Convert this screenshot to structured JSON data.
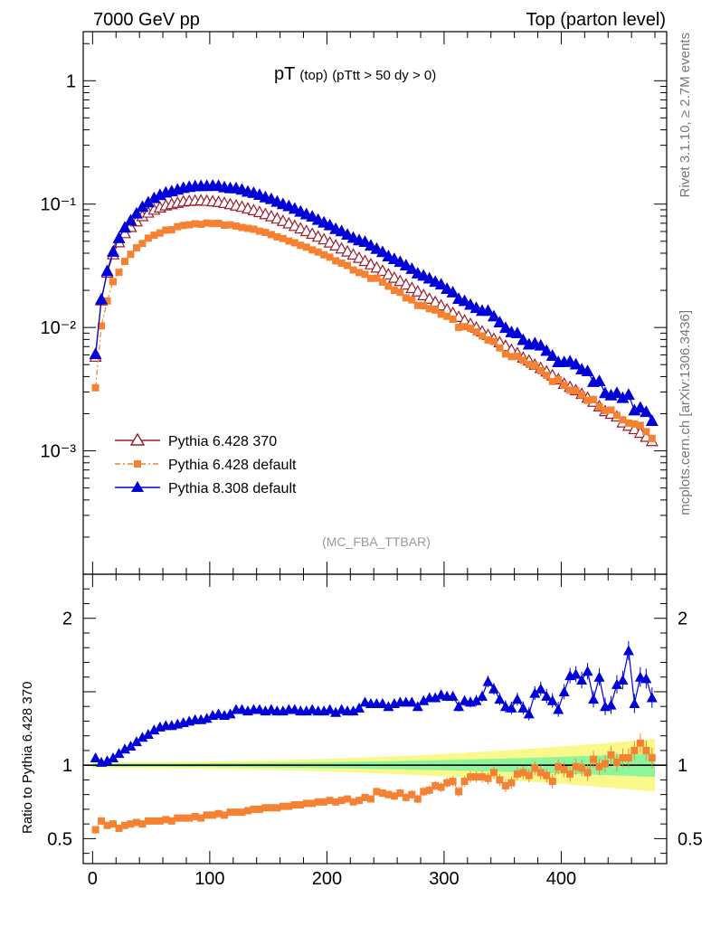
{
  "header": {
    "left": "7000 GeV pp",
    "right": "Top (parton level)"
  },
  "side": {
    "rivet": "Rivet 3.1.10, ≥ 2.7M events",
    "mcplots": "mcplots.cern.ch [arXiv:1306.3436]"
  },
  "chart_data": [
    {
      "type": "line",
      "title_main": "pT",
      "title_sub": "(top)",
      "title_cut": "(pTtt > 50 dy > 0)",
      "analysis": "(MC_FBA_TTBAR)",
      "yscale": "log",
      "xlim": [
        -8,
        490
      ],
      "ylim": [
        0.0001,
        2.5
      ],
      "ytick_labels": [
        "1",
        "10⁻¹",
        "10⁻²",
        "10⁻³"
      ],
      "ytick_values": [
        1,
        0.1,
        0.01,
        0.001
      ],
      "legend": [
        {
          "name": "Pythia 6.428 370",
          "color": "#9b1b2a",
          "marker": "open-triangle"
        },
        {
          "name": "Pythia 6.428 default",
          "color": "#f58232",
          "marker": "square"
        },
        {
          "name": "Pythia 8.308 default",
          "color": "#0000d8",
          "marker": "triangle"
        }
      ],
      "legend_position": "bottom-left",
      "x": [
        2.5,
        7.5,
        12.5,
        17.5,
        22.5,
        27.5,
        32.5,
        37.5,
        42.5,
        47.5,
        52.5,
        57.5,
        62.5,
        67.5,
        72.5,
        77.5,
        82.5,
        87.5,
        92.5,
        97.5,
        102.5,
        107.5,
        112.5,
        117.5,
        122.5,
        127.5,
        132.5,
        137.5,
        142.5,
        147.5,
        152.5,
        157.5,
        162.5,
        167.5,
        172.5,
        177.5,
        182.5,
        187.5,
        192.5,
        197.5,
        202.5,
        207.5,
        212.5,
        217.5,
        222.5,
        227.5,
        232.5,
        237.5,
        242.5,
        247.5,
        252.5,
        257.5,
        262.5,
        267.5,
        272.5,
        277.5,
        282.5,
        287.5,
        292.5,
        297.5,
        302.5,
        307.5,
        312.5,
        317.5,
        322.5,
        327.5,
        332.5,
        337.5,
        342.5,
        347.5,
        352.5,
        357.5,
        362.5,
        367.5,
        372.5,
        377.5,
        382.5,
        387.5,
        392.5,
        397.5,
        402.5,
        407.5,
        412.5,
        417.5,
        422.5,
        427.5,
        432.5,
        437.5,
        442.5,
        447.5,
        452.5,
        457.5,
        462.5,
        467.5,
        472.5,
        477.5
      ],
      "ref": [
        0.0058,
        0.0166,
        0.0278,
        0.0392,
        0.0491,
        0.0582,
        0.0653,
        0.0725,
        0.0799,
        0.0854,
        0.0902,
        0.094,
        0.0977,
        0.1,
        0.1025,
        0.105,
        0.1061,
        0.1067,
        0.1071,
        0.1064,
        0.1053,
        0.1042,
        0.1023,
        0.0999,
        0.0975,
        0.0951,
        0.0922,
        0.0894,
        0.0862,
        0.083,
        0.0797,
        0.0764,
        0.0731,
        0.0698,
        0.0666,
        0.0635,
        0.0605,
        0.0575,
        0.0545,
        0.0518,
        0.0489,
        0.0463,
        0.0437,
        0.0413,
        0.039,
        0.0367,
        0.0346,
        0.0325,
        0.0306,
        0.0288,
        0.027,
        0.0253,
        0.0238,
        0.0223,
        0.0209,
        0.0196,
        0.0183,
        0.0171,
        0.0161,
        0.0151,
        0.014,
        0.0131,
        0.0122,
        0.0114,
        0.0107,
        0.01,
        0.0093,
        0.0087,
        0.0081,
        0.0076,
        0.0071,
        0.0066,
        0.0062,
        0.0057,
        0.0054,
        0.005,
        0.0047,
        0.0044,
        0.0041,
        0.0038,
        0.0035,
        0.0033,
        0.0031,
        0.0029,
        0.0027,
        0.0025,
        0.0023,
        0.0021,
        0.002,
        0.0019,
        0.0017,
        0.0016,
        0.0015,
        0.0014,
        0.0013,
        0.0012
      ],
      "series": [
        {
          "name": "Pythia 6.428 370",
          "ratio": [
            1.0,
            1.0,
            1.0,
            1.0,
            1.0,
            1.0,
            1.0,
            1.0,
            1.0,
            1.0,
            1.0,
            1.0,
            1.0,
            1.0,
            1.0,
            1.0,
            1.0,
            1.0,
            1.0,
            1.0,
            1.0,
            1.0,
            1.0,
            1.0,
            1.0,
            1.0,
            1.0,
            1.0,
            1.0,
            1.0,
            1.0,
            1.0,
            1.0,
            1.0,
            1.0,
            1.0,
            1.0,
            1.0,
            1.0,
            1.0,
            1.0,
            1.0,
            1.0,
            1.0,
            1.0,
            1.0,
            1.0,
            1.0,
            1.0,
            1.0,
            1.0,
            1.0,
            1.0,
            1.0,
            1.0,
            1.0,
            1.0,
            1.0,
            1.0,
            1.0,
            1.0,
            1.0,
            1.0,
            1.0,
            1.0,
            1.0,
            1.0,
            1.0,
            1.0,
            1.0,
            1.0,
            1.0,
            1.0,
            1.0,
            1.0,
            1.0,
            1.0,
            1.0,
            1.0,
            1.0,
            1.0,
            1.0,
            1.0,
            1.0,
            1.0,
            1.0,
            1.0,
            1.0,
            1.0,
            1.0,
            1.0,
            1.0,
            1.0,
            1.0,
            1.0,
            1.0
          ]
        },
        {
          "name": "Pythia 6.428 default",
          "ratio": [
            0.56,
            0.62,
            0.59,
            0.6,
            0.57,
            0.59,
            0.6,
            0.61,
            0.6,
            0.62,
            0.62,
            0.62,
            0.63,
            0.62,
            0.64,
            0.64,
            0.64,
            0.65,
            0.64,
            0.66,
            0.66,
            0.67,
            0.66,
            0.68,
            0.68,
            0.68,
            0.69,
            0.7,
            0.7,
            0.71,
            0.71,
            0.71,
            0.72,
            0.72,
            0.73,
            0.73,
            0.74,
            0.74,
            0.75,
            0.75,
            0.76,
            0.75,
            0.76,
            0.77,
            0.75,
            0.76,
            0.78,
            0.77,
            0.82,
            0.81,
            0.8,
            0.79,
            0.81,
            0.78,
            0.8,
            0.77,
            0.82,
            0.83,
            0.86,
            0.85,
            0.88,
            0.89,
            0.82,
            0.89,
            0.92,
            0.92,
            0.92,
            0.91,
            0.95,
            0.9,
            0.86,
            0.88,
            0.94,
            0.95,
            0.93,
            0.98,
            0.95,
            0.93,
            0.89,
            0.99,
            0.97,
            0.94,
            0.99,
            0.98,
            0.95,
            1.04,
            0.99,
            1.01,
            1.07,
            1.02,
            1.05,
            1.05,
            1.1,
            1.15,
            1.1,
            1.05
          ]
        },
        {
          "name": "Pythia 8.308 default",
          "ratio": [
            1.05,
            1.02,
            1.03,
            1.05,
            1.08,
            1.11,
            1.13,
            1.16,
            1.19,
            1.21,
            1.24,
            1.26,
            1.27,
            1.27,
            1.28,
            1.29,
            1.3,
            1.31,
            1.31,
            1.32,
            1.34,
            1.35,
            1.34,
            1.35,
            1.38,
            1.38,
            1.37,
            1.38,
            1.38,
            1.37,
            1.38,
            1.37,
            1.37,
            1.38,
            1.38,
            1.37,
            1.37,
            1.38,
            1.37,
            1.37,
            1.38,
            1.36,
            1.38,
            1.37,
            1.37,
            1.39,
            1.43,
            1.42,
            1.42,
            1.42,
            1.4,
            1.42,
            1.43,
            1.43,
            1.43,
            1.4,
            1.44,
            1.46,
            1.46,
            1.48,
            1.47,
            1.47,
            1.4,
            1.44,
            1.43,
            1.44,
            1.47,
            1.57,
            1.52,
            1.45,
            1.4,
            1.39,
            1.45,
            1.39,
            1.35,
            1.49,
            1.52,
            1.47,
            1.44,
            1.38,
            1.5,
            1.61,
            1.62,
            1.58,
            1.64,
            1.45,
            1.6,
            1.4,
            1.41,
            1.55,
            1.58,
            1.78,
            1.42,
            1.6,
            1.59,
            1.46
          ]
        }
      ],
      "ratio_panel": {
        "ylabel": "Ratio to Pythia 6.428 370",
        "ylim": [
          0.33,
          2.3
        ],
        "ytick_labels": [
          "0.5",
          "1",
          "2"
        ],
        "ytick_values": [
          0.5,
          1,
          2
        ],
        "xtick_labels": [
          "0",
          "100",
          "200",
          "300",
          "400"
        ],
        "xtick_values": [
          0,
          100,
          200,
          300,
          400
        ],
        "band_colors": {
          "inner": "#8df59a",
          "outer": "#f8f98a"
        }
      }
    }
  ]
}
